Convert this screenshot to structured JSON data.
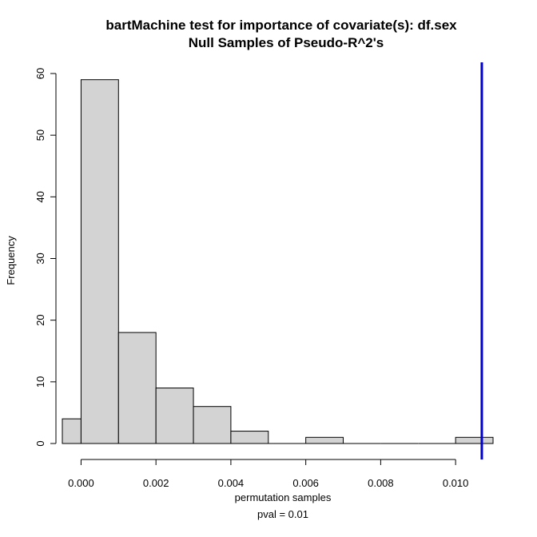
{
  "chart_data": {
    "type": "bar",
    "title": "bartMachine test for importance of covariate(s): df.sex",
    "subtitle": "Null Samples of Pseudo-R^2's",
    "xlabel": "permutation samples",
    "ylabel": "Frequency",
    "pval_text": "pval =  0.01",
    "bins": [
      {
        "from": -0.0005,
        "to": 0.0,
        "count": 4
      },
      {
        "from": 0.0,
        "to": 0.001,
        "count": 59
      },
      {
        "from": 0.001,
        "to": 0.002,
        "count": 18
      },
      {
        "from": 0.002,
        "to": 0.003,
        "count": 9
      },
      {
        "from": 0.003,
        "to": 0.004,
        "count": 6
      },
      {
        "from": 0.004,
        "to": 0.005,
        "count": 2
      },
      {
        "from": 0.005,
        "to": 0.006,
        "count": 0
      },
      {
        "from": 0.006,
        "to": 0.007,
        "count": 1
      },
      {
        "from": 0.007,
        "to": 0.008,
        "count": 0
      },
      {
        "from": 0.008,
        "to": 0.009,
        "count": 0
      },
      {
        "from": 0.009,
        "to": 0.01,
        "count": 0
      },
      {
        "from": 0.01,
        "to": 0.011,
        "count": 1
      }
    ],
    "observed_line": {
      "x": 0.0107,
      "color": "#0000cc"
    },
    "xlim": [
      -0.0005,
      0.011
    ],
    "ylim": [
      0,
      60
    ],
    "x_ticks": [
      0,
      0.002,
      0.004,
      0.006,
      0.008,
      0.01
    ],
    "x_tick_labels": [
      "0.000",
      "0.002",
      "0.004",
      "0.006",
      "0.008",
      "0.010"
    ],
    "y_ticks": [
      0,
      10,
      20,
      30,
      40,
      50,
      60
    ],
    "y_tick_labels": [
      "0",
      "10",
      "20",
      "30",
      "40",
      "50",
      "60"
    ],
    "bar_fill": "#d3d3d3",
    "bar_stroke": "#000000",
    "grid": false
  }
}
